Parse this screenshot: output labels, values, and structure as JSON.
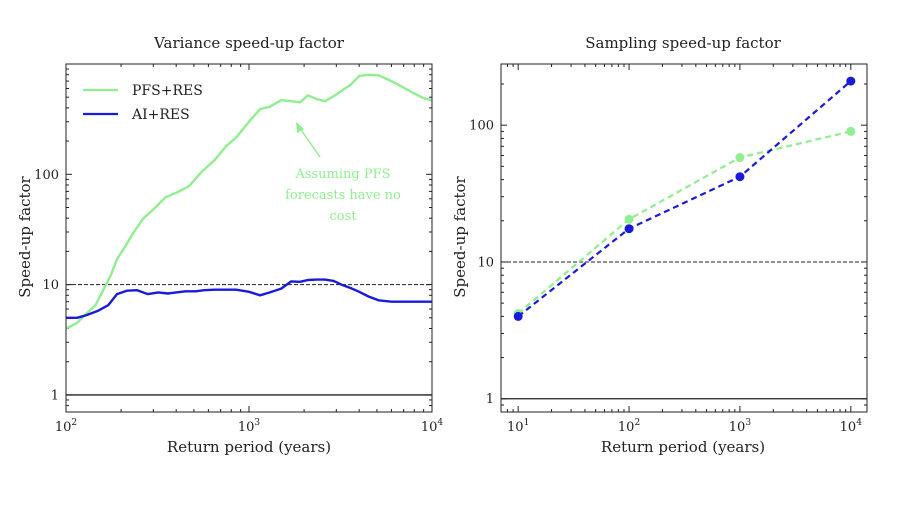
{
  "chart_data": [
    {
      "type": "line",
      "title": "Variance speed-up factor",
      "xlabel": "Return period (years)",
      "ylabel": "Speed-up factor",
      "xscale": "log",
      "yscale": "log",
      "xlim": [
        100,
        10000
      ],
      "ylim": [
        0.7,
        1000
      ],
      "xticks": [
        {
          "base": "10",
          "exp": "2"
        },
        {
          "base": "10",
          "exp": "3"
        },
        {
          "base": "10",
          "exp": "4"
        }
      ],
      "xtick_values": [
        100,
        1000,
        10000
      ],
      "yticks": [
        "1",
        "10",
        "100"
      ],
      "ytick_values": [
        1,
        10,
        100
      ],
      "hlines": [
        {
          "y": 10,
          "style": "dashed",
          "color": "#222222"
        },
        {
          "y": 1,
          "style": "solid",
          "color": "#222222"
        }
      ],
      "legend_position": "top-left",
      "series": [
        {
          "name": "PFS+RES",
          "color": "#90EE90",
          "x": [
            100,
            115,
            130,
            145,
            160,
            175,
            190,
            210,
            235,
            265,
            300,
            350,
            400,
            470,
            550,
            650,
            750,
            850,
            1000,
            1150,
            1300,
            1500,
            1700,
            1900,
            2100,
            2350,
            2600,
            2900,
            3200,
            3600,
            4000,
            4500,
            5100,
            6000,
            7000,
            8000,
            9000,
            10000
          ],
          "values": [
            4,
            4.5,
            5.5,
            6.5,
            9,
            12,
            17,
            22,
            30,
            40,
            48,
            62,
            68,
            78,
            105,
            135,
            180,
            215,
            300,
            390,
            410,
            470,
            460,
            450,
            520,
            480,
            460,
            510,
            570,
            650,
            780,
            800,
            790,
            700,
            610,
            540,
            490,
            470
          ]
        },
        {
          "name": "AI+RES",
          "color": "#1a1adb",
          "x": [
            100,
            115,
            130,
            150,
            170,
            190,
            215,
            245,
            280,
            320,
            360,
            400,
            450,
            510,
            570,
            650,
            750,
            850,
            1000,
            1150,
            1300,
            1500,
            1700,
            1900,
            2100,
            2350,
            2600,
            2900,
            3200,
            3600,
            4000,
            4500,
            5100,
            6000,
            7000,
            8000,
            9000,
            10000
          ],
          "values": [
            5,
            5,
            5.3,
            5.8,
            6.5,
            8.2,
            8.8,
            8.9,
            8.2,
            8.5,
            8.3,
            8.5,
            8.7,
            8.7,
            8.9,
            9,
            9,
            9,
            8.6,
            8,
            8.5,
            9.2,
            10.7,
            10.6,
            11,
            11.1,
            11.1,
            10.8,
            10,
            9.3,
            8.6,
            7.8,
            7.2,
            7,
            7,
            7,
            7,
            7
          ]
        }
      ],
      "annotation": {
        "lines": [
          "Assuming PFS",
          "forecasts have no",
          "cost"
        ],
        "color": "#90EE90",
        "arrow_to": {
          "x": 1900,
          "y": 420
        }
      }
    },
    {
      "type": "line",
      "title": "Sampling speed-up factor",
      "xlabel": "Return period (years)",
      "ylabel": "Speed-up factor",
      "xscale": "log",
      "yscale": "log",
      "xlim": [
        7,
        14000
      ],
      "ylim": [
        0.8,
        280
      ],
      "xticks": [
        {
          "base": "10",
          "exp": "1"
        },
        {
          "base": "10",
          "exp": "2"
        },
        {
          "base": "10",
          "exp": "3"
        },
        {
          "base": "10",
          "exp": "4"
        }
      ],
      "xtick_values": [
        10,
        100,
        1000,
        10000
      ],
      "yticks": [
        "1",
        "10",
        "100"
      ],
      "ytick_values": [
        1,
        10,
        100
      ],
      "hlines": [
        {
          "y": 10,
          "style": "dashed",
          "color": "#222222"
        },
        {
          "y": 1,
          "style": "solid",
          "color": "#222222"
        }
      ],
      "series": [
        {
          "name": "PFS+RES",
          "color": "#90EE90",
          "style": "dashed-markers",
          "x": [
            10,
            100,
            1000,
            10000
          ],
          "values": [
            4.2,
            20.5,
            58,
            90
          ]
        },
        {
          "name": "AI+RES",
          "color": "#1a1adb",
          "style": "dashed-markers",
          "x": [
            10,
            100,
            1000,
            10000
          ],
          "values": [
            4.0,
            17.5,
            42,
            210
          ]
        }
      ]
    }
  ]
}
